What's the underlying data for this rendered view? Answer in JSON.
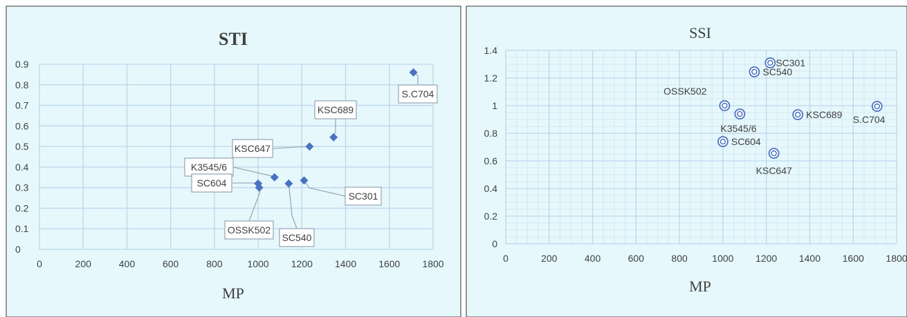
{
  "chart_data": [
    {
      "type": "scatter",
      "title": "STI",
      "xlabel": "MP",
      "ylabel": "",
      "xlim": [
        0,
        1800
      ],
      "ylim": [
        0,
        0.9
      ],
      "xticks": [
        "0",
        "200",
        "400",
        "600",
        "800",
        "1000",
        "1200",
        "1400",
        "1600",
        "1800"
      ],
      "yticks": [
        "0",
        "0.1",
        "0.2",
        "0.3",
        "0.4",
        "0.5",
        "0.6",
        "0.7",
        "0.8",
        "0.9"
      ],
      "grid": true,
      "marker": "diamond",
      "points": [
        {
          "label": "S.C704",
          "x": 1710,
          "y": 0.86
        },
        {
          "label": "KSC689",
          "x": 1345,
          "y": 0.545
        },
        {
          "label": "KSC647",
          "x": 1235,
          "y": 0.5
        },
        {
          "label": "K3545/6",
          "x": 1075,
          "y": 0.35
        },
        {
          "label": "SC604",
          "x": 1000,
          "y": 0.32
        },
        {
          "label": "OSSK502",
          "x": 1005,
          "y": 0.3
        },
        {
          "label": "SC540",
          "x": 1140,
          "y": 0.32
        },
        {
          "label": "SC301",
          "x": 1210,
          "y": 0.335
        }
      ]
    },
    {
      "type": "scatter",
      "title": "SSI",
      "xlabel": "MP",
      "ylabel": "",
      "xlim": [
        0,
        1800
      ],
      "ylim": [
        0,
        1.4
      ],
      "xticks": [
        "0",
        "200",
        "400",
        "600",
        "800",
        "1000",
        "1200",
        "1400",
        "1600",
        "1800"
      ],
      "yticks": [
        "0",
        "0.2",
        "0.4",
        "0.6",
        "0.8",
        "1",
        "1.2",
        "1.4"
      ],
      "grid": true,
      "marker": "ring",
      "points": [
        {
          "label": "SC301",
          "x": 1218,
          "y": 1.31
        },
        {
          "label": "SC540",
          "x": 1145,
          "y": 1.245
        },
        {
          "label": "OSSK502",
          "x": 1008,
          "y": 1.0
        },
        {
          "label": "K3545/6",
          "x": 1078,
          "y": 0.94
        },
        {
          "label": "KSC689",
          "x": 1345,
          "y": 0.935
        },
        {
          "label": "S.C704",
          "x": 1710,
          "y": 0.995
        },
        {
          "label": "SC604",
          "x": 1000,
          "y": 0.74
        },
        {
          "label": "KSC647",
          "x": 1235,
          "y": 0.655
        }
      ]
    }
  ],
  "colors": {
    "panel_background": "#e6f8fc",
    "grid": "#bcd6ea",
    "minor_grid": "#d4e7f3",
    "marker": "#4a72c0",
    "callout_border": "#9aaab8",
    "text": "#404040"
  }
}
